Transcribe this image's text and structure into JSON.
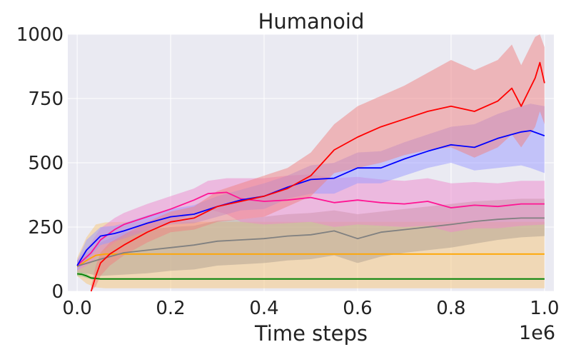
{
  "chart_data": {
    "type": "line",
    "title": "Humanoid",
    "xlabel": "Time steps",
    "ylabel": "",
    "x_offset_label": "1e6",
    "xlim": [
      -0.02,
      1.02
    ],
    "ylim": [
      0,
      1000
    ],
    "xticks": [
      0.0,
      0.2,
      0.4,
      0.6,
      0.8,
      1.0
    ],
    "xtick_labels": [
      "0.0",
      "0.2",
      "0.4",
      "0.6",
      "0.8",
      "1.0"
    ],
    "yticks": [
      0,
      250,
      500,
      750,
      1000
    ],
    "ytick_labels": [
      "0",
      "250",
      "500",
      "750",
      "1000"
    ],
    "grid": true,
    "legend": "none",
    "background": "#EAEAF2",
    "series": [
      {
        "color": "#FFA500",
        "shade_color": "#F5C57A",
        "x": [
          0.0,
          0.02,
          0.04,
          0.06,
          0.1,
          0.2,
          0.4,
          0.6,
          0.8,
          1.0
        ],
        "y": [
          95,
          120,
          140,
          145,
          145,
          145,
          145,
          145,
          145,
          145
        ],
        "lower": [
          60,
          30,
          15,
          12,
          12,
          12,
          12,
          12,
          12,
          12
        ],
        "upper": [
          130,
          210,
          260,
          268,
          270,
          270,
          270,
          270,
          270,
          270
        ]
      },
      {
        "color": "#008000",
        "shade_color": "#7FBF7F",
        "x": [
          0.0,
          0.01,
          0.02,
          0.03,
          0.05,
          0.1,
          0.2,
          0.4,
          0.6,
          0.8,
          1.0
        ],
        "y": [
          68,
          66,
          60,
          52,
          48,
          48,
          48,
          48,
          48,
          48,
          48
        ],
        "lower": [
          60,
          58,
          52,
          46,
          45,
          45,
          45,
          45,
          45,
          45,
          45
        ],
        "upper": [
          76,
          74,
          68,
          58,
          51,
          51,
          51,
          51,
          51,
          51,
          51
        ]
      },
      {
        "color": "#808080",
        "shade_color": "#B0A090",
        "x": [
          0.0,
          0.05,
          0.1,
          0.15,
          0.2,
          0.25,
          0.3,
          0.35,
          0.4,
          0.45,
          0.5,
          0.55,
          0.6,
          0.65,
          0.7,
          0.75,
          0.8,
          0.85,
          0.9,
          0.95,
          1.0
        ],
        "y": [
          98,
          125,
          150,
          160,
          170,
          180,
          195,
          200,
          205,
          215,
          220,
          235,
          205,
          230,
          240,
          250,
          260,
          272,
          280,
          285,
          285
        ],
        "lower": [
          75,
          60,
          65,
          70,
          80,
          85,
          100,
          105,
          110,
          120,
          125,
          140,
          110,
          135,
          150,
          160,
          170,
          185,
          200,
          210,
          215
        ],
        "upper": [
          120,
          190,
          230,
          240,
          250,
          255,
          275,
          280,
          290,
          300,
          305,
          315,
          300,
          310,
          320,
          330,
          340,
          350,
          355,
          360,
          360
        ]
      },
      {
        "color": "#FF1493",
        "shade_color": "#EE88CC",
        "x": [
          0.0,
          0.03,
          0.05,
          0.08,
          0.1,
          0.15,
          0.2,
          0.25,
          0.28,
          0.32,
          0.35,
          0.4,
          0.45,
          0.5,
          0.55,
          0.6,
          0.65,
          0.7,
          0.75,
          0.8,
          0.85,
          0.9,
          0.95,
          1.0
        ],
        "y": [
          100,
          150,
          200,
          240,
          260,
          290,
          320,
          355,
          380,
          385,
          360,
          350,
          355,
          365,
          345,
          355,
          345,
          340,
          350,
          325,
          335,
          330,
          340,
          340
        ],
        "lower": [
          80,
          110,
          150,
          190,
          215,
          240,
          270,
          300,
          320,
          300,
          270,
          260,
          265,
          270,
          250,
          260,
          255,
          250,
          255,
          230,
          245,
          245,
          255,
          260
        ],
        "upper": [
          120,
          190,
          245,
          285,
          305,
          340,
          370,
          400,
          430,
          440,
          440,
          440,
          450,
          455,
          440,
          445,
          435,
          430,
          440,
          420,
          425,
          420,
          430,
          430
        ]
      },
      {
        "color": "#0000FF",
        "shade_color": "#9999FF",
        "x": [
          0.0,
          0.02,
          0.05,
          0.08,
          0.1,
          0.15,
          0.2,
          0.25,
          0.3,
          0.35,
          0.4,
          0.45,
          0.5,
          0.55,
          0.6,
          0.65,
          0.7,
          0.75,
          0.8,
          0.85,
          0.9,
          0.95,
          0.97,
          1.0
        ],
        "y": [
          100,
          160,
          215,
          225,
          235,
          265,
          290,
          300,
          330,
          355,
          370,
          405,
          435,
          440,
          480,
          480,
          515,
          545,
          570,
          560,
          595,
          620,
          625,
          605
        ],
        "lower": [
          80,
          120,
          180,
          195,
          205,
          235,
          260,
          265,
          290,
          315,
          320,
          360,
          380,
          380,
          420,
          420,
          450,
          480,
          500,
          470,
          480,
          490,
          480,
          460
        ],
        "upper": [
          120,
          200,
          250,
          255,
          265,
          295,
          320,
          335,
          370,
          395,
          420,
          450,
          490,
          500,
          540,
          545,
          580,
          610,
          640,
          650,
          690,
          720,
          730,
          720
        ]
      },
      {
        "color": "#FF0000",
        "shade_color": "#F08080",
        "x": [
          0.03,
          0.04,
          0.05,
          0.07,
          0.1,
          0.15,
          0.2,
          0.25,
          0.3,
          0.35,
          0.4,
          0.45,
          0.5,
          0.55,
          0.6,
          0.65,
          0.7,
          0.75,
          0.8,
          0.85,
          0.9,
          0.93,
          0.95,
          0.98,
          0.99,
          1.0
        ],
        "y": [
          0,
          60,
          110,
          145,
          180,
          230,
          270,
          285,
          330,
          350,
          370,
          400,
          450,
          550,
          600,
          640,
          670,
          700,
          720,
          700,
          740,
          790,
          720,
          830,
          890,
          810
        ],
        "lower": [
          0,
          20,
          60,
          100,
          140,
          190,
          230,
          240,
          270,
          280,
          290,
          330,
          370,
          460,
          480,
          500,
          530,
          550,
          560,
          520,
          560,
          610,
          560,
          640,
          700,
          650
        ],
        "upper": [
          20,
          100,
          150,
          190,
          220,
          270,
          310,
          330,
          390,
          420,
          450,
          480,
          540,
          650,
          720,
          760,
          800,
          850,
          900,
          860,
          900,
          960,
          880,
          990,
          1000,
          950
        ]
      }
    ]
  }
}
